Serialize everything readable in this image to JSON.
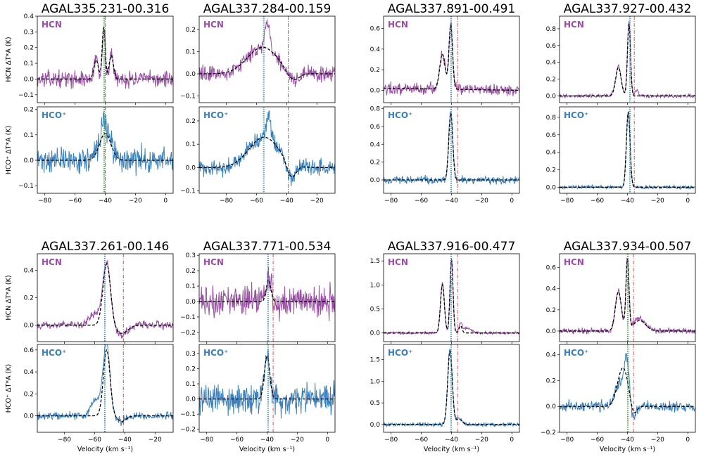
{
  "colors": {
    "hcn": "#9b4ea6",
    "hco": "#3a80bc",
    "model": "#000000",
    "green_line": "#2ca02c",
    "blue_line": "#1f77b4",
    "red_line": "#d62728"
  },
  "labels": {
    "velocity_axis": "Velocity (km s⁻¹)",
    "hcn_ylabel": "HCN  ΔT*A (K)",
    "hco_ylabel": "HCO⁺  ΔT*A (K)",
    "hcn_name": "HCN",
    "hco_name": "HCO⁺"
  },
  "chart_data": [
    {
      "type": "line",
      "title": "AGAL335.231-00.316",
      "xlim": [
        -85,
        5
      ],
      "xticks": [
        -80,
        -60,
        -40,
        -20,
        0
      ],
      "green_v": -40.5,
      "blue_v": -41,
      "red_v": -40,
      "hcn": {
        "ylim": [
          -0.15,
          0.4
        ],
        "yticks": [
          -0.1,
          0.0,
          0.1,
          0.2,
          0.3,
          0.4
        ],
        "noise": 0.035,
        "offset": 0.0,
        "peaks": [
          [
            -46,
            0.14,
            1.2
          ],
          [
            -41,
            0.34,
            1.0
          ],
          [
            -36,
            0.16,
            1.2
          ]
        ],
        "model_peaks": [
          [
            -46,
            0.12,
            1.5
          ],
          [
            -41,
            0.33,
            1.0
          ],
          [
            -36,
            0.15,
            1.4
          ]
        ]
      },
      "hco": {
        "ylim": [
          -0.13,
          0.21
        ],
        "yticks": [
          -0.1,
          0.0,
          0.1,
          0.2
        ],
        "noise": 0.035,
        "offset": 0.0,
        "peaks": [
          [
            -40,
            0.11,
            4
          ],
          [
            -41,
            0.07,
            1
          ]
        ],
        "model_peaks": [
          [
            -40,
            0.105,
            3.8
          ]
        ]
      }
    },
    {
      "type": "line",
      "title": "AGAL337.284-00.159",
      "xlim": [
        -98,
        -8
      ],
      "xticks": [
        -80,
        -60,
        -40,
        -20
      ],
      "green_v": -55,
      "blue_v": -55.5,
      "red_v": -39,
      "hcn": {
        "ylim": [
          -0.13,
          0.26
        ],
        "yticks": [
          -0.1,
          0.0,
          0.1,
          0.2
        ],
        "noise": 0.025,
        "offset": 0.0,
        "peaks": [
          [
            -56,
            0.12,
            10
          ],
          [
            -53,
            0.12,
            1.5
          ],
          [
            -36,
            -0.04,
            4
          ]
        ],
        "model_peaks": [
          [
            -56,
            0.12,
            10
          ],
          [
            -36,
            -0.04,
            4
          ]
        ]
      },
      "hco": {
        "ylim": [
          -0.11,
          0.26
        ],
        "yticks": [
          -0.1,
          0.0,
          0.1,
          0.2
        ],
        "noise": 0.025,
        "offset": 0.0,
        "peaks": [
          [
            -55,
            0.13,
            10
          ],
          [
            -52,
            0.1,
            1.5
          ],
          [
            -37,
            -0.07,
            3
          ]
        ],
        "model_peaks": [
          [
            -55,
            0.13,
            10
          ],
          [
            -37,
            -0.065,
            3
          ]
        ]
      }
    },
    {
      "type": "line",
      "title": "AGAL337.891-00.491",
      "xlim": [
        -85,
        5
      ],
      "xticks": [
        -80,
        -60,
        -40,
        -20,
        0
      ],
      "green_v": -40,
      "blue_v": -40.5,
      "red_v": -36,
      "hcn": {
        "ylim": [
          -0.12,
          0.72
        ],
        "yticks": [
          0.0,
          0.2,
          0.4,
          0.6
        ],
        "noise": 0.04,
        "offset": 0.02,
        "peaks": [
          [
            -46,
            0.35,
            1.8
          ],
          [
            -40.5,
            0.65,
            1.2
          ]
        ],
        "model_peaks": [
          [
            -46,
            0.34,
            1.8
          ],
          [
            -40.5,
            0.62,
            1.2
          ]
        ]
      },
      "hco": {
        "ylim": [
          -0.15,
          0.82
        ],
        "yticks": [
          0.0,
          0.2,
          0.4,
          0.6,
          0.8
        ],
        "noise": 0.03,
        "offset": 0.0,
        "peaks": [
          [
            -40.5,
            0.78,
            1.3
          ]
        ],
        "model_peaks": [
          [
            -40.5,
            0.75,
            1.3
          ]
        ]
      }
    },
    {
      "type": "line",
      "title": "AGAL337.927-00.432",
      "xlim": [
        -85,
        5
      ],
      "xticks": [
        -80,
        -60,
        -40,
        -20,
        0
      ],
      "green_v": -38,
      "blue_v": -38.5,
      "red_v": -35.5,
      "hcn": {
        "ylim": [
          -0.08,
          0.95
        ],
        "yticks": [
          0.0,
          0.2,
          0.4,
          0.6,
          0.8
        ],
        "noise": 0.015,
        "offset": 0.0,
        "peaks": [
          [
            -46,
            0.35,
            1.8
          ],
          [
            -39,
            0.88,
            1.0
          ],
          [
            -34,
            0.07,
            1
          ]
        ],
        "model_peaks": [
          [
            -46,
            0.34,
            1.8
          ],
          [
            -39,
            0.86,
            1.0
          ]
        ]
      },
      "hco": {
        "ylim": [
          -0.07,
          0.92
        ],
        "yticks": [
          0.0,
          0.2,
          0.4,
          0.6,
          0.8
        ],
        "noise": 0.015,
        "offset": 0.0,
        "peaks": [
          [
            -39.5,
            0.88,
            1.2
          ]
        ],
        "model_peaks": [
          [
            -39.5,
            0.86,
            1.2
          ]
        ]
      }
    },
    {
      "type": "line",
      "title": "AGAL337.261-00.146",
      "xlim": [
        -98,
        -8
      ],
      "xticks": [
        -80,
        -60,
        -40,
        -20
      ],
      "green_v": -53,
      "blue_v": -53.5,
      "red_v": -41,
      "hcn": {
        "ylim": [
          -0.12,
          0.52
        ],
        "yticks": [
          0.0,
          0.2,
          0.4
        ],
        "noise": 0.02,
        "offset": 0.0,
        "peaks": [
          [
            -60,
            0.08,
            4
          ],
          [
            -52,
            0.45,
            2.5
          ],
          [
            -42,
            -0.07,
            4
          ]
        ],
        "model_peaks": [
          [
            -52,
            0.45,
            2.5
          ],
          [
            -42,
            -0.06,
            4
          ]
        ]
      },
      "hco": {
        "ylim": [
          -0.15,
          0.65
        ],
        "yticks": [
          0.0,
          0.2,
          0.4,
          0.6
        ],
        "noise": 0.025,
        "offset": 0.0,
        "peaks": [
          [
            -58,
            0.15,
            4
          ],
          [
            -52,
            0.6,
            2.2
          ],
          [
            -42,
            -0.05,
            3
          ]
        ],
        "model_peaks": [
          [
            -52,
            0.6,
            2.2
          ],
          [
            -42,
            -0.05,
            3
          ]
        ]
      }
    },
    {
      "type": "line",
      "title": "AGAL337.771-00.534",
      "xlim": [
        -85,
        5
      ],
      "xticks": [
        -80,
        -60,
        -40,
        -20,
        0
      ],
      "green_v": -39,
      "blue_v": -39.5,
      "red_v": -36,
      "hcn": {
        "ylim": [
          -0.26,
          0.31
        ],
        "yticks": [
          -0.2,
          -0.1,
          0.0,
          0.1,
          0.2,
          0.3
        ],
        "noise": 0.07,
        "offset": 0.0,
        "peaks": [
          [
            -39,
            0.15,
            1.5
          ]
        ],
        "model_peaks": [
          [
            -39,
            0.14,
            1.5
          ]
        ]
      },
      "hco": {
        "ylim": [
          -0.22,
          0.36
        ],
        "yticks": [
          -0.2,
          -0.1,
          0.0,
          0.1,
          0.2,
          0.3
        ],
        "noise": 0.07,
        "offset": 0.0,
        "peaks": [
          [
            -40,
            0.3,
            1.8
          ]
        ],
        "model_peaks": [
          [
            -40,
            0.28,
            1.8
          ]
        ]
      }
    },
    {
      "type": "line",
      "title": "AGAL337.916-00.477",
      "xlim": [
        -85,
        5
      ],
      "xticks": [
        -80,
        -60,
        -40,
        -20,
        0
      ],
      "green_v": -40,
      "blue_v": -40.5,
      "red_v": -36,
      "hcn": {
        "ylim": [
          -0.18,
          1.65
        ],
        "yticks": [
          0.0,
          0.5,
          1.0,
          1.5
        ],
        "noise": 0.02,
        "offset": 0.0,
        "peaks": [
          [
            -46,
            1.05,
            1.3
          ],
          [
            -40,
            1.55,
            1.0
          ],
          [
            -34,
            0.18,
            1.0
          ],
          [
            -30,
            0.1,
            3
          ]
        ],
        "model_peaks": [
          [
            -46,
            1.0,
            1.3
          ],
          [
            -40,
            1.52,
            1.0
          ],
          [
            -34,
            0.15,
            1.0
          ]
        ]
      },
      "hco": {
        "ylim": [
          -0.18,
          1.85
        ],
        "yticks": [
          0.0,
          0.5,
          1.0,
          1.5
        ],
        "noise": 0.03,
        "offset": 0.0,
        "peaks": [
          [
            -41,
            1.75,
            1.5
          ],
          [
            -35,
            0.15,
            2
          ]
        ],
        "model_peaks": [
          [
            -41,
            1.7,
            1.5
          ],
          [
            -35,
            0.12,
            2
          ]
        ]
      }
    },
    {
      "type": "line",
      "title": "AGAL337.934-00.507",
      "xlim": [
        -85,
        5
      ],
      "xticks": [
        -80,
        -60,
        -40,
        -20,
        0
      ],
      "green_v": -39.5,
      "blue_v": -40,
      "red_v": -36,
      "hcn": {
        "ylim": [
          -0.1,
          0.73
        ],
        "yticks": [
          0.0,
          0.2,
          0.4,
          0.6
        ],
        "noise": 0.02,
        "offset": 0.0,
        "peaks": [
          [
            -46,
            0.38,
            2.0
          ],
          [
            -40,
            0.68,
            1.0
          ],
          [
            -32,
            0.12,
            4
          ]
        ],
        "model_peaks": [
          [
            -46,
            0.37,
            2.0
          ],
          [
            -40,
            0.66,
            1.0
          ],
          [
            -32,
            0.1,
            4
          ]
        ]
      },
      "hco": {
        "ylim": [
          -0.2,
          0.48
        ],
        "yticks": [
          -0.2,
          0.0,
          0.2,
          0.4
        ],
        "noise": 0.03,
        "offset": 0.0,
        "peaks": [
          [
            -44,
            0.2,
            4
          ],
          [
            -40.5,
            0.25,
            1.5
          ],
          [
            -36,
            -0.12,
            1.5
          ]
        ],
        "model_peaks": [
          [
            -43,
            0.3,
            3.5
          ],
          [
            -36,
            -0.08,
            2
          ]
        ]
      }
    }
  ]
}
